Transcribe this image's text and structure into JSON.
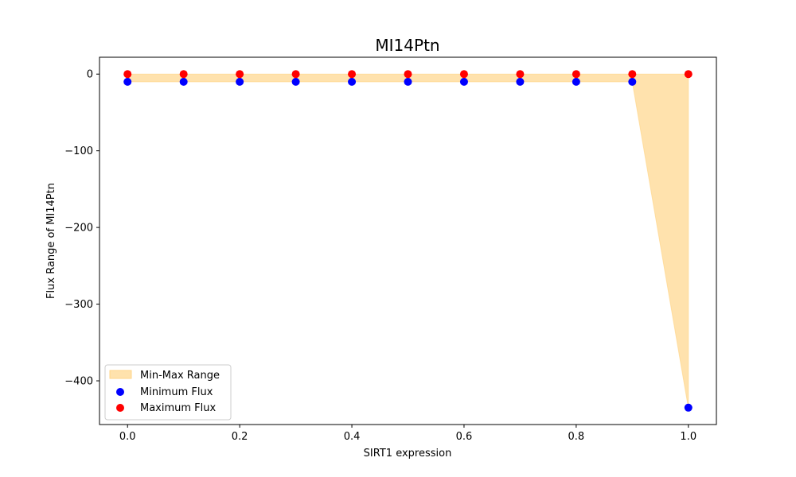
{
  "chart_data": {
    "type": "scatter",
    "title": "MI14Ptn",
    "xlabel": "SIRT1 expression",
    "ylabel": "Flux Range of MI14Ptn",
    "x": [
      0.0,
      0.1,
      0.2,
      0.3,
      0.4,
      0.5,
      0.6,
      0.7,
      0.8,
      0.9,
      1.0
    ],
    "xlim": [
      -0.05,
      1.05
    ],
    "ylim": [
      -457,
      22
    ],
    "x_ticks": [
      0.0,
      0.2,
      0.4,
      0.6,
      0.8,
      1.0
    ],
    "x_tick_labels": [
      "0.0",
      "0.2",
      "0.4",
      "0.6",
      "0.8",
      "1.0"
    ],
    "y_ticks": [
      0,
      -100,
      -200,
      -300,
      -400
    ],
    "y_tick_labels": [
      "0",
      "−100",
      "−200",
      "−300",
      "−400"
    ],
    "grid": false,
    "legend_position": "lower-left",
    "series": [
      {
        "name": "Min-Max Range",
        "kind": "fill_between",
        "color": "#ffd58a",
        "opacity": 0.7
      },
      {
        "name": "Minimum Flux",
        "kind": "scatter",
        "color": "#0000ff",
        "values": [
          -10,
          -10,
          -10,
          -10,
          -10,
          -10,
          -10,
          -10,
          -10,
          -10,
          -435
        ]
      },
      {
        "name": "Maximum Flux",
        "kind": "scatter",
        "color": "#ff0000",
        "values": [
          0,
          0,
          0,
          0,
          0,
          0,
          0,
          0,
          0,
          0,
          0
        ]
      }
    ]
  }
}
